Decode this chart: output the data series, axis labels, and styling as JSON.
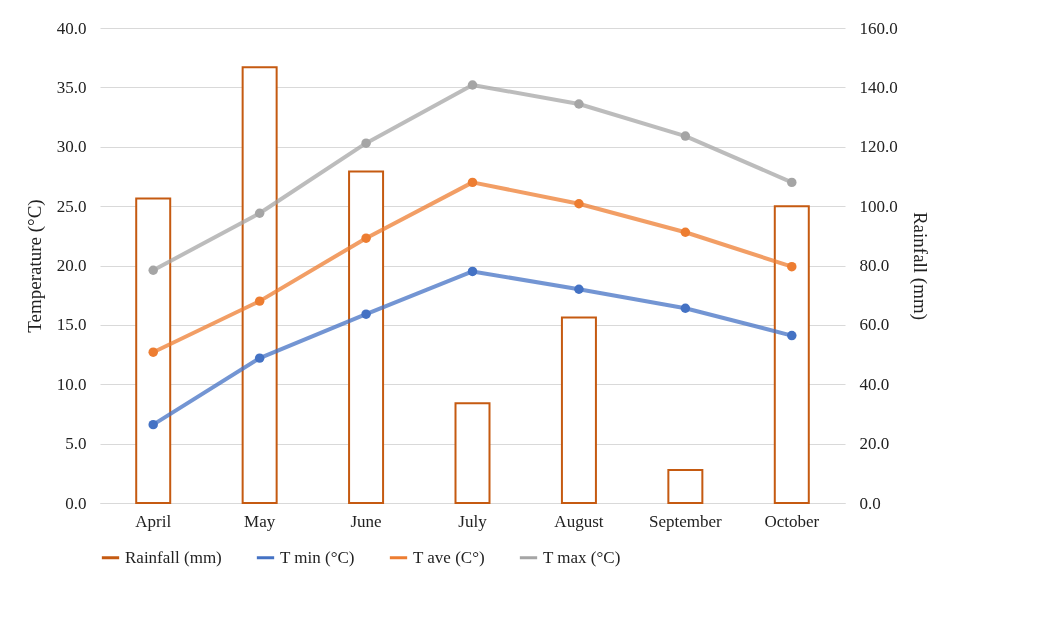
{
  "chart_data": {
    "type": "line",
    "categories": [
      "April",
      "May",
      "June",
      "July",
      "August",
      "September",
      "October"
    ],
    "ylabel": "Temperature (°C)",
    "y2label": "Rainfall (mm)",
    "series": [
      {
        "name": "Rainfall (mm)",
        "type": "bar",
        "axis": "y2",
        "color": "#c55a11",
        "values": [
          102.6,
          146.8,
          111.7,
          33.6,
          62.5,
          11.1,
          100.0
        ]
      },
      {
        "name": "T min (°C)",
        "color": "#4472c4",
        "values": [
          6.6,
          12.2,
          15.9,
          19.5,
          18.0,
          16.4,
          14.1
        ]
      },
      {
        "name": "T ave (C°)",
        "color": "#ed7d31",
        "values": [
          12.7,
          17.0,
          22.3,
          27.0,
          25.2,
          22.8,
          19.9
        ]
      },
      {
        "name": "T max (°C)",
        "color": "#a5a5a5",
        "values": [
          19.6,
          24.4,
          30.3,
          35.2,
          33.6,
          30.9,
          27.0
        ]
      }
    ],
    "ylim": [
      0,
      40
    ],
    "yticks": [
      {
        "value": 0,
        "label": "0.0"
      },
      {
        "value": 5,
        "label": "5.0"
      },
      {
        "value": 10,
        "label": "10.0"
      },
      {
        "value": 15,
        "label": "15.0"
      },
      {
        "value": 20,
        "label": "20.0"
      },
      {
        "value": 25,
        "label": "25.0"
      },
      {
        "value": 30,
        "label": "30.0"
      },
      {
        "value": 35,
        "label": "35.0"
      },
      {
        "value": 40,
        "label": "40.0"
      }
    ],
    "y2lim": [
      0,
      160
    ],
    "y2ticks": [
      {
        "value": 0,
        "label": "0.0"
      },
      {
        "value": 20,
        "label": "20.0"
      },
      {
        "value": 40,
        "label": "40.0"
      },
      {
        "value": 60,
        "label": "60.0"
      },
      {
        "value": 80,
        "label": "80.0"
      },
      {
        "value": 100,
        "label": "100.0"
      },
      {
        "value": 120,
        "label": "120.0"
      },
      {
        "value": 140,
        "label": "140.0"
      },
      {
        "value": 160,
        "label": "160.0"
      }
    ],
    "grid": true,
    "legend": "bottom",
    "marker": "circle",
    "line_style": "solid"
  }
}
